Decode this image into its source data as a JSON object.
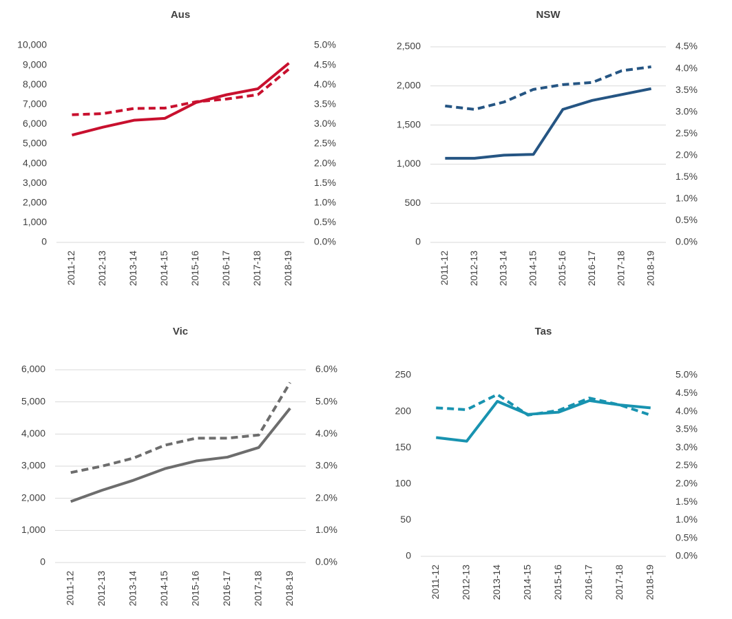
{
  "chart_data": [
    {
      "type": "line",
      "title": "Aus",
      "categories": [
        "2011-12",
        "2012-13",
        "2013-14",
        "2014-15",
        "2015-16",
        "2016-17",
        "2017-18",
        "2018-19"
      ],
      "series": [
        {
          "color": "#c8102e",
          "style": "solid",
          "values": [
            5450,
            5850,
            6200,
            6300,
            7100,
            7500,
            7800,
            9100
          ]
        },
        {
          "color": "#c8102e",
          "style": "dashed",
          "axis": "y2",
          "values": [
            3.24,
            3.27,
            3.4,
            3.41,
            3.57,
            3.64,
            3.75,
            4.4
          ]
        }
      ],
      "ylim": [
        0,
        10000
      ],
      "yticks": [
        0,
        {
          "value": 1000,
          "label": "1,000"
        },
        {
          "value": 2000,
          "label": "2,000"
        },
        {
          "value": 3000,
          "label": "3,000"
        },
        {
          "value": 4000,
          "label": "4,000"
        },
        {
          "value": 5000,
          "label": "5,000"
        },
        {
          "value": 6000,
          "label": "6,000"
        },
        {
          "value": 7000,
          "label": "7,000"
        },
        {
          "value": 8000,
          "label": "8,000"
        },
        {
          "value": 9000,
          "label": "9,000"
        },
        {
          "value": 10000,
          "label": "10,000"
        }
      ],
      "y2lim": [
        0,
        5
      ],
      "y2ticks": [
        {
          "value": 0,
          "label": "0.0%"
        },
        {
          "value": 0.5,
          "label": "0.5%"
        },
        {
          "value": 1,
          "label": "1.0%"
        },
        {
          "value": 1.5,
          "label": "1.5%"
        },
        {
          "value": 2,
          "label": "2.0%"
        },
        {
          "value": 2.5,
          "label": "2.5%"
        },
        {
          "value": 3,
          "label": "3.0%"
        },
        {
          "value": 3.5,
          "label": "3.5%"
        },
        {
          "value": 4,
          "label": "4.0%"
        },
        {
          "value": 4.5,
          "label": "4.5%"
        },
        {
          "value": 5,
          "label": "5.0%"
        }
      ],
      "grid": false
    },
    {
      "type": "line",
      "title": "NSW",
      "categories": [
        "2011-12",
        "2012-13",
        "2013-14",
        "2014-15",
        "2015-16",
        "2016-17",
        "2017-18",
        "2018-19"
      ],
      "series": [
        {
          "color": "#255583",
          "style": "solid",
          "values": [
            1075,
            1075,
            1115,
            1125,
            1700,
            1815,
            1890,
            1965
          ]
        },
        {
          "color": "#255583",
          "style": "dashed",
          "axis": "y2",
          "values": [
            3.14,
            3.06,
            3.23,
            3.52,
            3.63,
            3.68,
            3.95,
            4.04
          ]
        }
      ],
      "ylim": [
        0,
        2500
      ],
      "yticks": [
        0,
        500,
        {
          "value": 1000,
          "label": "1,000"
        },
        {
          "value": 1500,
          "label": "1,500"
        },
        {
          "value": 2000,
          "label": "2,000"
        },
        {
          "value": 2500,
          "label": "2,500"
        }
      ],
      "y2lim": [
        0,
        4.5
      ],
      "y2ticks": [
        {
          "value": 0,
          "label": "0.0%"
        },
        {
          "value": 0.5,
          "label": "0.5%"
        },
        {
          "value": 1,
          "label": "1.0%"
        },
        {
          "value": 1.5,
          "label": "1.5%"
        },
        {
          "value": 2,
          "label": "2.0%"
        },
        {
          "value": 2.5,
          "label": "2.5%"
        },
        {
          "value": 3,
          "label": "3.0%"
        },
        {
          "value": 3.5,
          "label": "3.5%"
        },
        {
          "value": 4,
          "label": "4.0%"
        },
        {
          "value": 4.5,
          "label": "4.5%"
        }
      ],
      "grid": true
    },
    {
      "type": "line",
      "title": "Vic",
      "categories": [
        "2011-12",
        "2012-13",
        "2013-14",
        "2014-15",
        "2015-16",
        "2016-17",
        "2017-18",
        "2018-19"
      ],
      "series": [
        {
          "color": "#6d6d6d",
          "style": "solid",
          "values": [
            1900,
            2250,
            2560,
            2920,
            3160,
            3280,
            3580,
            4800
          ]
        },
        {
          "color": "#6d6d6d",
          "style": "dashed",
          "axis": "y2",
          "values": [
            2.8,
            3.0,
            3.25,
            3.65,
            3.87,
            3.87,
            3.97,
            5.6
          ]
        }
      ],
      "ylim": [
        0,
        6000
      ],
      "yticks": [
        0,
        {
          "value": 1000,
          "label": "1,000"
        },
        {
          "value": 2000,
          "label": "2,000"
        },
        {
          "value": 3000,
          "label": "3,000"
        },
        {
          "value": 4000,
          "label": "4,000"
        },
        {
          "value": 5000,
          "label": "5,000"
        },
        {
          "value": 6000,
          "label": "6,000"
        }
      ],
      "y2lim": [
        0,
        6
      ],
      "y2ticks": [
        {
          "value": 0,
          "label": "0.0%"
        },
        {
          "value": 1,
          "label": "1.0%"
        },
        {
          "value": 2,
          "label": "2.0%"
        },
        {
          "value": 3,
          "label": "3.0%"
        },
        {
          "value": 4,
          "label": "4.0%"
        },
        {
          "value": 5,
          "label": "5.0%"
        },
        {
          "value": 6,
          "label": "6.0%"
        }
      ],
      "grid": true
    },
    {
      "type": "line",
      "title": "Tas",
      "categories": [
        "2011-12",
        "2012-13",
        "2013-14",
        "2014-15",
        "2015-16",
        "2016-17",
        "2017-18",
        "2018-19"
      ],
      "series": [
        {
          "color": "#1893b0",
          "style": "solid",
          "values": [
            164,
            159,
            214,
            196,
            199,
            215,
            209,
            205
          ]
        },
        {
          "color": "#1893b0",
          "style": "dashed",
          "axis": "y2",
          "values": [
            4.1,
            4.05,
            4.47,
            3.9,
            4.03,
            4.37,
            4.18,
            3.9
          ]
        }
      ],
      "ylim": [
        0,
        250
      ],
      "yticks": [
        0,
        50,
        100,
        150,
        200,
        250
      ],
      "y2lim": [
        0,
        5
      ],
      "y2ticks": [
        {
          "value": 0,
          "label": "0.0%"
        },
        {
          "value": 0.5,
          "label": "0.5%"
        },
        {
          "value": 1,
          "label": "1.0%"
        },
        {
          "value": 1.5,
          "label": "1.5%"
        },
        {
          "value": 2,
          "label": "2.0%"
        },
        {
          "value": 2.5,
          "label": "2.5%"
        },
        {
          "value": 3,
          "label": "3.0%"
        },
        {
          "value": 3.5,
          "label": "3.5%"
        },
        {
          "value": 4,
          "label": "4.0%"
        },
        {
          "value": 4.5,
          "label": "4.5%"
        },
        {
          "value": 5,
          "label": "5.0%"
        }
      ],
      "grid": false
    }
  ]
}
